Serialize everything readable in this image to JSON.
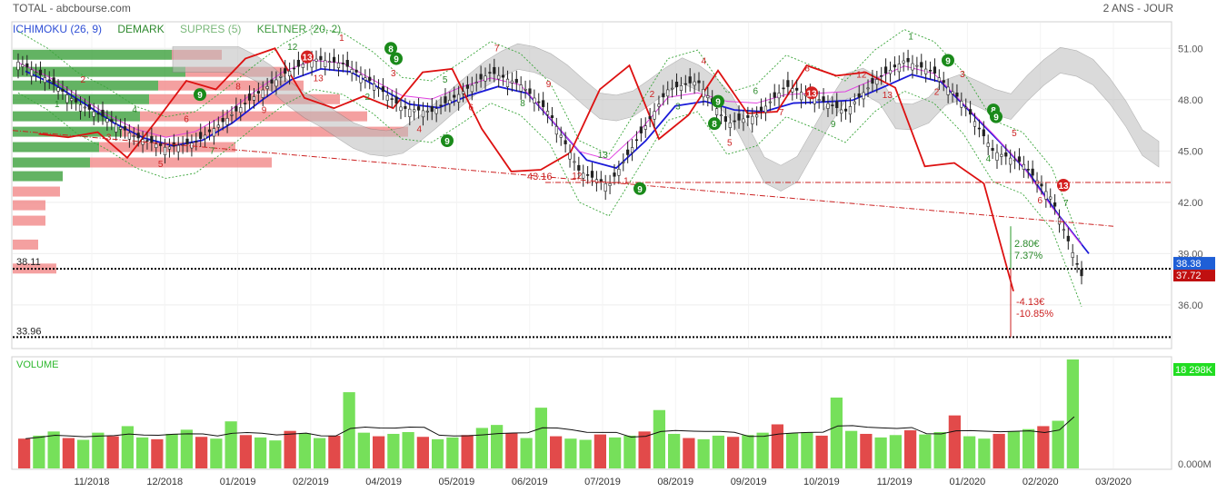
{
  "header": {
    "title": "TOTAL - abcbourse.com",
    "period": "2 ANS - JOUR"
  },
  "legend": [
    {
      "label": "ICHIMOKU (26, 9)",
      "color": "#2f4fd6"
    },
    {
      "label": "DEMARK",
      "color": "#2f8a2f"
    },
    {
      "label": "SUPRES (5)",
      "color": "#7ab87a"
    },
    {
      "label": "KELTNER (20, 2)",
      "color": "#3f9a3f"
    }
  ],
  "colors": {
    "price_up": "#333333",
    "price_down": "#333333",
    "kijun": "#1a1ad8",
    "tenkan": "#e040e0",
    "chikou": "#dd1111",
    "cloud": "#bdbdbd",
    "keltner": "#3aa53a",
    "vol_up": "#76e05a",
    "vol_down": "#e24a4a",
    "profile_buy": "#2f9a2f",
    "profile_sell": "#f08080",
    "badge_green": "#1a8a1a",
    "badge_red": "#d42020",
    "last_price_bg": "#1f5fd6",
    "last_close_bg": "#c01010",
    "volume_badge": "#22dd22"
  },
  "chart_data": [
    {
      "type": "line",
      "title": "TOTAL",
      "x_axis_months": [
        "11/2018",
        "12/2018",
        "01/2019",
        "02/2019",
        "04/2019",
        "05/2019",
        "06/2019",
        "07/2019",
        "08/2019",
        "09/2019",
        "10/2019",
        "11/2019",
        "01/2020",
        "02/2020",
        "03/2020"
      ],
      "y_ticks": [
        36.0,
        39.0,
        42.0,
        45.0,
        48.0,
        51.0
      ],
      "ylim": [
        33.5,
        52.5
      ],
      "series": [
        {
          "name": "ICHIMOKU (26, 9)",
          "values_close": [
            50.2,
            49.2,
            47.8,
            46.9,
            45.8,
            45.2,
            45.5,
            46.8,
            48.2,
            49.5,
            50.4,
            50.1,
            49.0,
            47.5,
            47.3,
            48.4,
            49.6,
            48.9,
            47.2,
            43.8,
            43.0,
            45.8,
            48.6,
            49.1,
            46.6,
            47.1,
            48.8,
            48.1,
            47.3,
            49.1,
            50.3,
            49.6,
            47.8,
            45.0,
            44.3,
            42.2,
            37.7
          ]
        }
      ],
      "price_levels": {
        "high_label": "38.11",
        "low_label": "33.96",
        "mid_label": "43.16"
      },
      "annotations": [
        {
          "text": "2.80€",
          "sub": "7.37%"
        },
        {
          "text": "-4.13€",
          "sub": "-10.85%"
        }
      ],
      "last_price": "38.38",
      "last_close": "37.72",
      "demark_labels": [
        "1",
        "2",
        "3",
        "4",
        "5",
        "6",
        "7",
        "8",
        "9",
        "12",
        "13"
      ]
    },
    {
      "type": "bar",
      "title": "VOLUME",
      "y_ticks": [
        "0.000M"
      ],
      "last_volume": "18 298K",
      "values": [
        5.0,
        5.5,
        6.2,
        5.1,
        4.8,
        6.0,
        5.4,
        7.1,
        5.2,
        4.9,
        5.8,
        6.5,
        5.3,
        5.0,
        7.9,
        5.6,
        5.2,
        4.7,
        6.3,
        5.9,
        5.1,
        5.5,
        12.8,
        6.0,
        5.4,
        5.8,
        6.1,
        5.3,
        4.9,
        5.2,
        5.6,
        6.8,
        7.3,
        5.9,
        5.1,
        10.2,
        5.4,
        5.0,
        4.8,
        5.7,
        5.2,
        5.5,
        6.2,
        9.8,
        5.8,
        5.1,
        4.9,
        5.5,
        5.3,
        5.6,
        6.0,
        7.4,
        5.9,
        6.1,
        5.5,
        11.9,
        6.3,
        5.8,
        5.2,
        5.6,
        6.4,
        5.7,
        6.1,
        8.9,
        5.4,
        5.0,
        5.8,
        6.2,
        6.6,
        7.1,
        8.0,
        18.3
      ]
    }
  ]
}
